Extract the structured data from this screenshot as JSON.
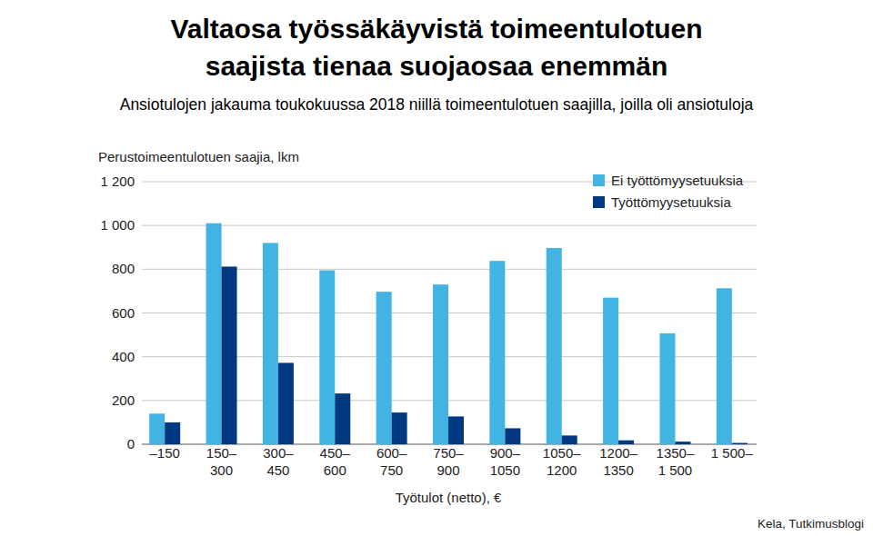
{
  "chart_data": {
    "type": "bar",
    "title": "Valtaosa työssäkäyvistä toimeentulotuen saajista tienaa suojaosaa enemmän",
    "subtitle": "Ansiotulojen jakauma toukokuussa 2018 niillä toimeentulotuen saajilla, joilla oli ansiotuloja",
    "y_label": "Perustoimeentulotuen saajia, lkm",
    "x_label": "Työtulot (netto), €",
    "source": "Kela, Tutkimusblogi",
    "categories": [
      "–150",
      "150–300",
      "300–450",
      "450–600",
      "600–750",
      "750–900",
      "900–1050",
      "1050–1200",
      "1200–1350",
      "1350–1 500",
      "1 500–"
    ],
    "series": [
      {
        "name": "Ei työttömyysetuuksia",
        "color": "#41b4e3",
        "values": [
          140,
          1010,
          920,
          795,
          697,
          730,
          838,
          897,
          670,
          507,
          713
        ]
      },
      {
        "name": "Työttömyysetuuksia",
        "color": "#003882",
        "values": [
          100,
          812,
          372,
          232,
          145,
          127,
          73,
          40,
          18,
          12,
          6
        ]
      }
    ],
    "ylim": [
      0,
      1200
    ],
    "yticks": [
      0,
      200,
      400,
      600,
      800,
      {
        "value": 1000,
        "label": "1 000"
      },
      {
        "value": 1200,
        "label": "1 200"
      }
    ],
    "grid": true,
    "legend": "top-right"
  }
}
